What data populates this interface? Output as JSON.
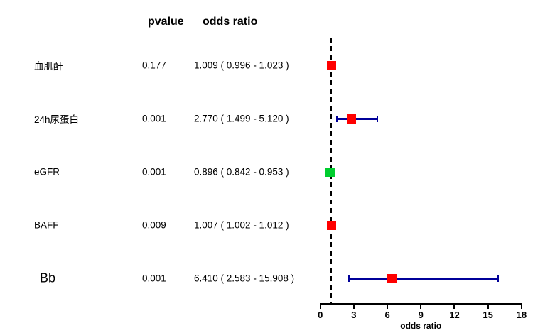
{
  "header": {
    "pvalue": "pvalue",
    "odds_ratio": "odds ratio"
  },
  "colors": {
    "red": "#FF0000",
    "green": "#00CD2E",
    "bar_blue": "#000099",
    "axis_black": "#000000",
    "background": "#FFFFFF"
  },
  "chart_data": {
    "type": "scatter",
    "subtype": "forest-plot",
    "xlabel": "odds ratio",
    "xlim": [
      0,
      18
    ],
    "x_ticks": [
      0,
      3,
      6,
      9,
      12,
      15,
      18
    ],
    "reference_line": 1,
    "grid": false,
    "rows": [
      {
        "label": "血肌酐",
        "pvalue": "0.177",
        "or_text": "1.009 ( 0.996 - 1.023 )",
        "or": 1.009,
        "ci_low": 0.996,
        "ci_high": 1.023,
        "color": "red"
      },
      {
        "label": "24h尿蛋白",
        "pvalue": "0.001",
        "or_text": "2.770 ( 1.499 - 5.120 )",
        "or": 2.77,
        "ci_low": 1.499,
        "ci_high": 5.12,
        "color": "red"
      },
      {
        "label": "eGFR",
        "pvalue": "0.001",
        "or_text": "0.896 ( 0.842 - 0.953 )",
        "or": 0.896,
        "ci_low": 0.842,
        "ci_high": 0.953,
        "color": "green"
      },
      {
        "label": "BAFF",
        "pvalue": "0.009",
        "or_text": "1.007 ( 1.002 - 1.012 )",
        "or": 1.007,
        "ci_low": 1.002,
        "ci_high": 1.012,
        "color": "red"
      },
      {
        "label": "Bb",
        "pvalue": "0.001",
        "or_text": "6.410 ( 2.583 - 15.908 )",
        "or": 6.41,
        "ci_low": 2.583,
        "ci_high": 15.908,
        "color": "red"
      }
    ]
  }
}
